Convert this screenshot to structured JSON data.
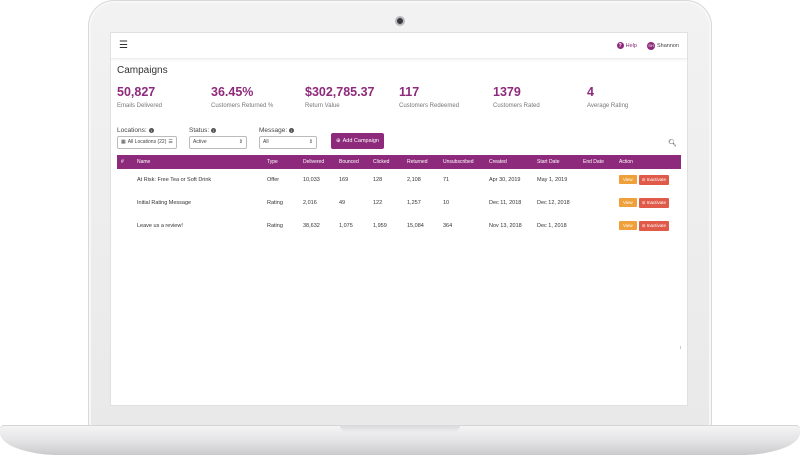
{
  "topbar": {
    "help_label": "Help",
    "user_name": "Shannon",
    "user_initials": "SH"
  },
  "page": {
    "title": "Campaigns"
  },
  "stats": [
    {
      "value": "50,827",
      "label": "Emails Delivered"
    },
    {
      "value": "36.45%",
      "label": "Customers Returned %"
    },
    {
      "value": "$302,785.37",
      "label": "Return Value"
    },
    {
      "value": "117",
      "label": "Customers Redeemed"
    },
    {
      "value": "1379",
      "label": "Customers Rated"
    },
    {
      "value": "4",
      "label": "Average Rating"
    }
  ],
  "filters": {
    "locations_label": "Locations:",
    "locations_value": "All Locations (22)",
    "status_label": "Status:",
    "status_value": "Active",
    "message_label": "Message:",
    "message_value": "All",
    "add_campaign_label": "Add Campaign"
  },
  "table": {
    "headers": [
      "#",
      "Name",
      "Type",
      "Delivered",
      "Bounced",
      "Clicked",
      "Returned",
      "Unsubscribed",
      "Created",
      "Start Date",
      "End Date",
      "Action"
    ],
    "rows": [
      {
        "num": "",
        "name": "At Risk: Free Tea or Soft Drink",
        "type": "Offer",
        "delivered": "10,033",
        "bounced": "169",
        "clicked": "128",
        "returned": "2,108",
        "unsubscribed": "71",
        "created": "Apr 30, 2019",
        "start": "May 1, 2019",
        "end": ""
      },
      {
        "num": "",
        "name": "Initial Rating Message",
        "type": "Rating",
        "delivered": "2,016",
        "bounced": "49",
        "clicked": "122",
        "returned": "1,257",
        "unsubscribed": "10",
        "created": "Dec 11, 2018",
        "start": "Dec 12, 2018",
        "end": ""
      },
      {
        "num": "",
        "name": "Leave us a review!",
        "type": "Rating",
        "delivered": "38,632",
        "bounced": "1,075",
        "clicked": "1,959",
        "returned": "15,084",
        "unsubscribed": "364",
        "created": "Nov 13, 2018",
        "start": "Dec 1, 2018",
        "end": ""
      }
    ],
    "view_label": "View",
    "inactivate_label": "Inactivate"
  },
  "colors": {
    "accent": "#8e2a7b",
    "view_button": "#f0a03a",
    "inactivate_button": "#e05a4a"
  },
  "icons": {
    "menu": "hamburger-icon",
    "help": "question-icon",
    "search": "search-icon",
    "add": "plus-icon",
    "info": "info-icon"
  }
}
